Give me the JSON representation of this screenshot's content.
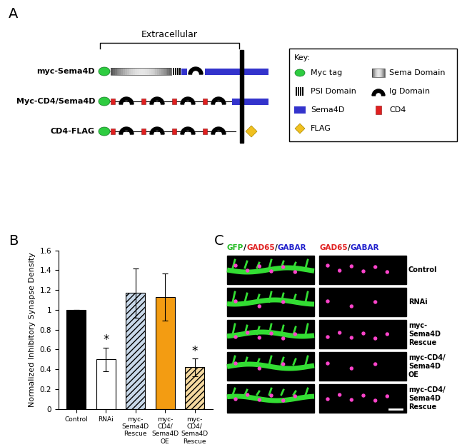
{
  "panel_labels": [
    "A",
    "B",
    "C"
  ],
  "diagram": {
    "region_label": "Extracellular",
    "constructs": [
      "myc-Sema4D",
      "Myc-CD4/Sema4D",
      "CD4-FLAG"
    ],
    "key": {
      "title": "Key:",
      "items": [
        "Myc tag",
        "PSI Domain",
        "Sema4D",
        "FLAG",
        "Sema Domain",
        "Ig Domain",
        "CD4"
      ]
    }
  },
  "chart_data": {
    "type": "bar",
    "categories": [
      "Control",
      "RNAi",
      "myc-\nSema4D\nRescue",
      "myc-\nCD4/\nSema4D\nOE",
      "myc-\nCD4/\nSema4D\nRescue"
    ],
    "values": [
      1.0,
      0.5,
      1.17,
      1.13,
      0.42
    ],
    "errors": [
      0,
      0.12,
      0.25,
      0.24,
      0.09
    ],
    "colors": [
      "#000000",
      "#ffffff",
      "#c9d9ea",
      "#f39c12",
      "#f5d9a0"
    ],
    "y_label": "Normalized Inhibitory Synapse Density",
    "ylim": [
      0,
      1.6
    ],
    "yticks": [
      0,
      0.2,
      0.4,
      0.6,
      0.8,
      1,
      1.2,
      1.4,
      1.6
    ],
    "annotations": [
      {
        "category": "RNAi",
        "text": "*"
      },
      {
        "category": "myc-\nCD4/\nSema4D\nRescue",
        "text": "*"
      }
    ],
    "grid": false
  },
  "images": {
    "headers": [
      [
        {
          "text": "GFP",
          "color": "#22bb22"
        },
        {
          "text": "/",
          "color": "#000000"
        },
        {
          "text": "GAD65",
          "color": "#e02020"
        },
        {
          "text": "/",
          "color": "#000000"
        },
        {
          "text": "GABAR",
          "color": "#2020cc"
        }
      ],
      [
        {
          "text": "GAD65",
          "color": "#e02020"
        },
        {
          "text": "/",
          "color": "#000000"
        },
        {
          "text": "GABAR",
          "color": "#2020cc"
        }
      ]
    ],
    "rows": [
      "Control",
      "RNAi",
      "myc-\nSema4D\nRescue",
      "myc-CD4/\nSema4D\nOE",
      "myc-CD4/\nSema4D\nRescue"
    ]
  }
}
